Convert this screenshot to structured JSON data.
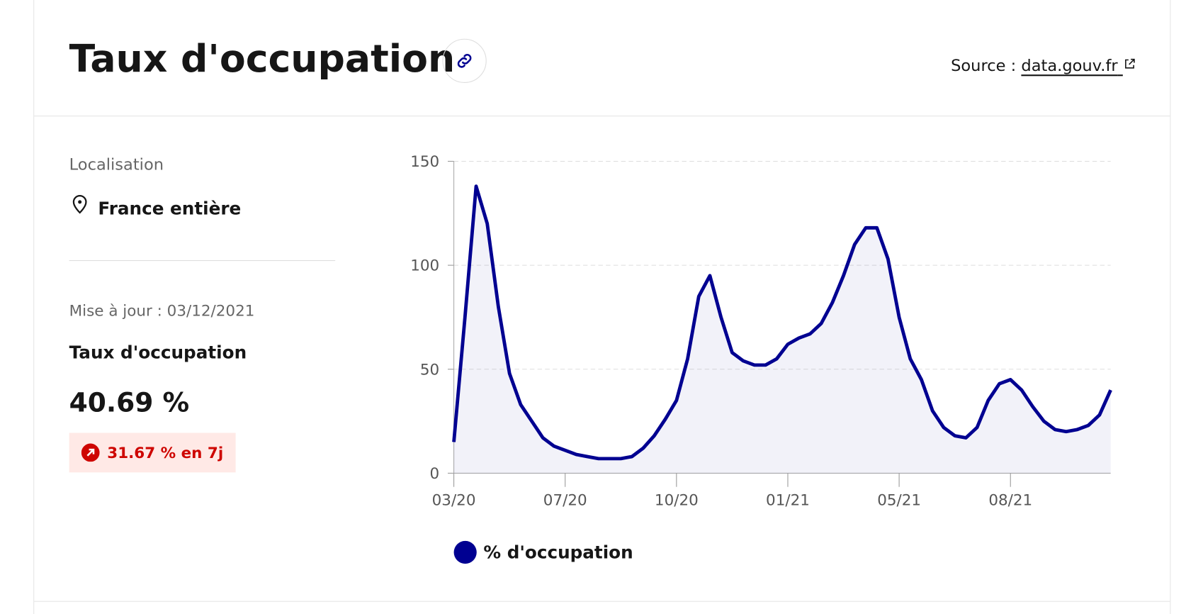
{
  "header": {
    "title": "Taux d'occupation",
    "source_label": "Source :",
    "source_link": "data.gouv.fr"
  },
  "sidebar": {
    "location_label": "Localisation",
    "location": "France entière",
    "updated": "Mise à jour : 03/12/2021",
    "metric_label": "Taux d'occupation",
    "metric_value": "40.69 %",
    "change": "31.67 % en 7j"
  },
  "chart_data": {
    "type": "line",
    "categories": [
      "03/20",
      null,
      null,
      null,
      null,
      null,
      null,
      null,
      null,
      null,
      "07/20",
      null,
      null,
      null,
      null,
      null,
      null,
      null,
      null,
      null,
      "10/20",
      null,
      null,
      null,
      null,
      null,
      null,
      null,
      null,
      null,
      "01/21",
      null,
      null,
      null,
      null,
      null,
      null,
      null,
      null,
      null,
      "05/21",
      null,
      null,
      null,
      null,
      null,
      null,
      null,
      null,
      null,
      "08/21",
      null,
      null,
      null,
      null,
      null,
      null,
      null,
      null,
      null
    ],
    "series": [
      {
        "name": "% d'occupation",
        "color": "#000091",
        "values": [
          15,
          75,
          138,
          120,
          80,
          48,
          33,
          25,
          17,
          13,
          11,
          9,
          8,
          7,
          7,
          7,
          8,
          12,
          18,
          26,
          35,
          55,
          85,
          95,
          75,
          58,
          54,
          52,
          52,
          55,
          62,
          65,
          67,
          72,
          82,
          95,
          110,
          118,
          118,
          103,
          75,
          55,
          45,
          30,
          22,
          18,
          17,
          22,
          35,
          43,
          45,
          40,
          32,
          25,
          21,
          20,
          21,
          23,
          28,
          40
        ]
      }
    ],
    "ylim": [
      0,
      150
    ],
    "yticks": [
      0,
      50,
      100,
      150
    ],
    "grid": true
  }
}
